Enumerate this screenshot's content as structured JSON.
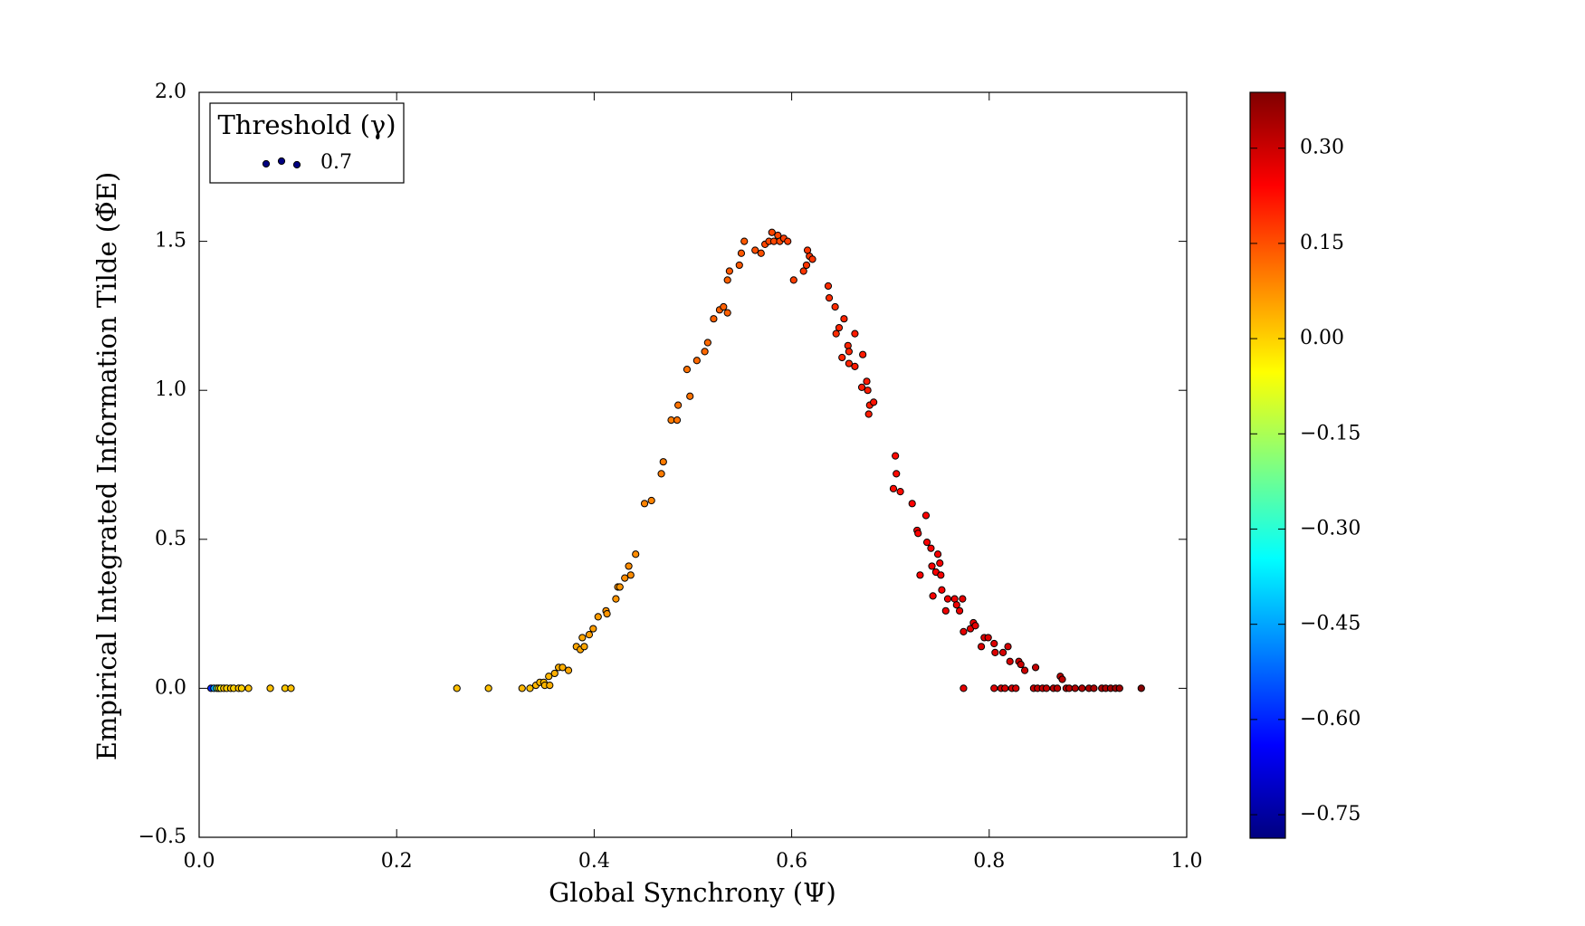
{
  "chart_data": {
    "type": "scatter",
    "xlabel": "Global Synchrony (Ψ)",
    "ylabel": "Empirical Integrated Information Tilde (Φ̃E)",
    "xlim": [
      0,
      1
    ],
    "ylim": [
      -0.5,
      2
    ],
    "xticks": [
      {
        "value": 0,
        "label": "0.0"
      },
      0.2,
      0.4,
      0.6,
      0.8,
      {
        "value": 1,
        "label": "1.0"
      }
    ],
    "yticks": [
      {
        "value": -0.5,
        "label": "−0.5"
      },
      {
        "value": 0,
        "label": "0.0"
      },
      0.5,
      {
        "value": 1,
        "label": "1.0"
      },
      1.5,
      {
        "value": 2,
        "label": "2.0"
      }
    ],
    "legend_title": "Threshold (γ)",
    "legend_position": "upper left",
    "colormap": "jet",
    "clim": [
      -0.787,
      0.388
    ],
    "colorbar_ticks": [
      {
        "value": 0.3,
        "label": "0.30"
      },
      {
        "value": 0.15,
        "label": "0.15"
      },
      {
        "value": 0,
        "label": "0.00"
      },
      {
        "value": -0.15,
        "label": "−0.15"
      },
      {
        "value": -0.3,
        "label": "−0.30"
      },
      {
        "value": -0.45,
        "label": "−0.45"
      },
      {
        "value": -0.6,
        "label": "−0.60"
      },
      {
        "value": -0.75,
        "label": "−0.75"
      }
    ],
    "series": [
      {
        "name": "0.7",
        "color": "#000080",
        "x": [
          0.012,
          0.015,
          0.018,
          0.02,
          0.022,
          0.025,
          0.028,
          0.032,
          0.035,
          0.04,
          0.043,
          0.05,
          0.072,
          0.087,
          0.093,
          0.261,
          0.293,
          0.327,
          0.335,
          0.341,
          0.345,
          0.349,
          0.35,
          0.354,
          0.355,
          0.36,
          0.364,
          0.368,
          0.374,
          0.382,
          0.386,
          0.39,
          0.388,
          0.395,
          0.399,
          0.404,
          0.412,
          0.413,
          0.422,
          0.424,
          0.426,
          0.431,
          0.435,
          0.437,
          0.442,
          0.451,
          0.458,
          0.468,
          0.47,
          0.478,
          0.484,
          0.485,
          0.497,
          0.494,
          0.504,
          0.512,
          0.515,
          0.521,
          0.527,
          0.531,
          0.535,
          0.535,
          0.537,
          0.547,
          0.549,
          0.552,
          0.563,
          0.569,
          0.573,
          0.577,
          0.58,
          0.582,
          0.586,
          0.588,
          0.592,
          0.596,
          0.602,
          0.612,
          0.615,
          0.616,
          0.618,
          0.621,
          0.637,
          0.638,
          0.644,
          0.645,
          0.648,
          0.653,
          0.651,
          0.657,
          0.658,
          0.658,
          0.664,
          0.664,
          0.672,
          0.671,
          0.676,
          0.677,
          0.678,
          0.679,
          0.683,
          0.705,
          0.706,
          0.703,
          0.71,
          0.722,
          0.727,
          0.728,
          0.736,
          0.73,
          0.737,
          0.741,
          0.742,
          0.743,
          0.746,
          0.748,
          0.751,
          0.75,
          0.752,
          0.756,
          0.758,
          0.765,
          0.767,
          0.77,
          0.773,
          0.774,
          0.781,
          0.784,
          0.786,
          0.792,
          0.795,
          0.799,
          0.806,
          0.805,
          0.814,
          0.819,
          0.821,
          0.83,
          0.832,
          0.836,
          0.847,
          0.872,
          0.874,
          0.774,
          0.805,
          0.812,
          0.816,
          0.823,
          0.827,
          0.845,
          0.849,
          0.854,
          0.858,
          0.865,
          0.869,
          0.878,
          0.881,
          0.887,
          0.894,
          0.901,
          0.906,
          0.914,
          0.918,
          0.923,
          0.928,
          0.932,
          0.954
        ],
        "values": [
          0,
          0,
          0,
          0,
          0,
          0,
          0,
          0,
          0,
          0,
          0,
          0,
          0,
          0,
          0,
          0,
          0,
          0,
          0,
          0.01,
          0.02,
          0.02,
          0.01,
          0.04,
          0.01,
          0.05,
          0.07,
          0.07,
          0.06,
          0.14,
          0.13,
          0.14,
          0.17,
          0.18,
          0.2,
          0.24,
          0.26,
          0.25,
          0.3,
          0.34,
          0.34,
          0.37,
          0.41,
          0.38,
          0.45,
          0.62,
          0.63,
          0.72,
          0.76,
          0.9,
          0.9,
          0.95,
          0.98,
          1.07,
          1.1,
          1.13,
          1.16,
          1.24,
          1.27,
          1.28,
          1.26,
          1.37,
          1.4,
          1.42,
          1.46,
          1.5,
          1.47,
          1.46,
          1.49,
          1.5,
          1.53,
          1.5,
          1.52,
          1.5,
          1.51,
          1.5,
          1.37,
          1.4,
          1.42,
          1.47,
          1.45,
          1.44,
          1.35,
          1.31,
          1.28,
          1.19,
          1.21,
          1.24,
          1.11,
          1.15,
          1.13,
          1.09,
          1.19,
          1.08,
          1.12,
          1.01,
          1.03,
          1.0,
          0.92,
          0.95,
          0.96,
          0.78,
          0.72,
          0.67,
          0.66,
          0.62,
          0.53,
          0.52,
          0.58,
          0.38,
          0.49,
          0.47,
          0.41,
          0.31,
          0.39,
          0.45,
          0.38,
          0.42,
          0.33,
          0.26,
          0.3,
          0.3,
          0.28,
          0.26,
          0.3,
          0.19,
          0.2,
          0.22,
          0.21,
          0.14,
          0.17,
          0.17,
          0.12,
          0.15,
          0.12,
          0.14,
          0.09,
          0.09,
          0.08,
          0.06,
          0.07,
          0.04,
          0.03,
          0,
          0,
          0,
          0,
          0,
          0,
          0,
          0,
          0,
          0,
          0,
          0,
          0,
          0,
          0,
          0,
          0,
          0,
          0,
          0,
          0,
          0,
          0,
          0
        ],
        "c": [
          -0.6,
          -0.45,
          -0.2,
          0,
          -0.05,
          0.02,
          0,
          0.02,
          0,
          0.02,
          0,
          0.02,
          0.02,
          0.01,
          0.02,
          0.02,
          0.02,
          0.03,
          0.02,
          0.03,
          0.03,
          0.03,
          0.03,
          0.03,
          0.04,
          0.04,
          0.04,
          0.04,
          0.05,
          0.05,
          0.05,
          0.05,
          0.05,
          0.06,
          0.06,
          0.06,
          0.07,
          0.07,
          0.07,
          0.07,
          0.07,
          0.08,
          0.08,
          0.08,
          0.08,
          0.09,
          0.09,
          0.1,
          0.1,
          0.1,
          0.11,
          0.11,
          0.11,
          0.11,
          0.12,
          0.12,
          0.12,
          0.13,
          0.13,
          0.13,
          0.13,
          0.13,
          0.14,
          0.14,
          0.14,
          0.14,
          0.15,
          0.15,
          0.16,
          0.16,
          0.16,
          0.16,
          0.16,
          0.16,
          0.17,
          0.17,
          0.17,
          0.18,
          0.18,
          0.18,
          0.18,
          0.18,
          0.19,
          0.19,
          0.19,
          0.19,
          0.2,
          0.2,
          0.2,
          0.2,
          0.2,
          0.2,
          0.21,
          0.21,
          0.21,
          0.21,
          0.21,
          0.21,
          0.21,
          0.21,
          0.22,
          0.23,
          0.23,
          0.23,
          0.23,
          0.24,
          0.24,
          0.24,
          0.24,
          0.24,
          0.25,
          0.25,
          0.25,
          0.25,
          0.25,
          0.25,
          0.25,
          0.25,
          0.25,
          0.26,
          0.26,
          0.26,
          0.26,
          0.26,
          0.27,
          0.27,
          0.27,
          0.27,
          0.27,
          0.28,
          0.28,
          0.28,
          0.28,
          0.28,
          0.29,
          0.29,
          0.29,
          0.3,
          0.3,
          0.3,
          0.31,
          0.32,
          0.32,
          0.27,
          0.28,
          0.29,
          0.29,
          0.29,
          0.29,
          0.3,
          0.31,
          0.31,
          0.31,
          0.32,
          0.32,
          0.32,
          0.32,
          0.33,
          0.33,
          0.34,
          0.34,
          0.34,
          0.34,
          0.35,
          0.35,
          0.35,
          0.38
        ]
      }
    ]
  }
}
